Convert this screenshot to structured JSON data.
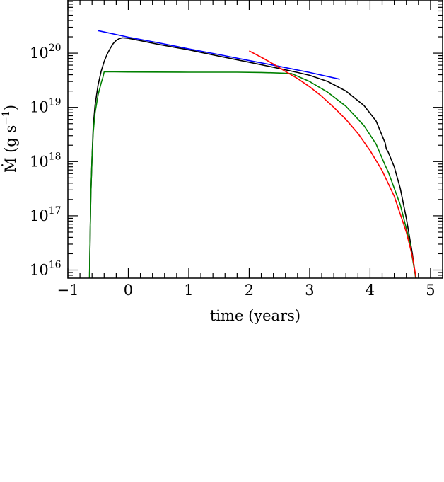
{
  "chart_data": {
    "type": "line",
    "title": "",
    "xlabel": "time (years)",
    "ylabel": "Ṁ (g s",
    "ylabel_exp": "−1",
    "ylabel_close": ")",
    "xlim": [
      -1,
      5.2
    ],
    "ylim_log10": [
      15.85,
      20.98
    ],
    "y_scale": "log",
    "grid": false,
    "legend": "none",
    "x_ticks": [
      {
        "value": -1,
        "label": "−1"
      },
      {
        "value": 0,
        "label": "0"
      },
      {
        "value": 1,
        "label": "1"
      },
      {
        "value": 2,
        "label": "2"
      },
      {
        "value": 3,
        "label": "3"
      },
      {
        "value": 4,
        "label": "4"
      },
      {
        "value": 5,
        "label": "5"
      }
    ],
    "y_ticks": [
      {
        "log10": 16,
        "base": "10",
        "exp": "16"
      },
      {
        "log10": 17,
        "base": "10",
        "exp": "17"
      },
      {
        "log10": 18,
        "base": "10",
        "exp": "18"
      },
      {
        "log10": 19,
        "base": "10",
        "exp": "19"
      },
      {
        "log10": 20,
        "base": "10",
        "exp": "20"
      }
    ],
    "series": [
      {
        "color": "#000000",
        "x": [
          -0.65,
          -0.64,
          -0.63,
          -0.62,
          -0.6,
          -0.58,
          -0.55,
          -0.5,
          -0.45,
          -0.4,
          -0.35,
          -0.3,
          -0.25,
          -0.2,
          -0.15,
          -0.1,
          0.0,
          0.2,
          0.5,
          1.0,
          1.5,
          2.0,
          2.5,
          2.8,
          3.0,
          3.3,
          3.6,
          3.9,
          4.1,
          4.25,
          4.27,
          4.3,
          4.4,
          4.5,
          4.6,
          4.7,
          4.75,
          4.78,
          4.8
        ],
        "y": [
          1000000000000000.0,
          1e+16,
          6e+16,
          2.5e+17,
          1.2e+18,
          4.5e+18,
          1.1e+19,
          2.6e+19,
          4.6e+19,
          7e+19,
          9.6e+19,
          1.22e+20,
          1.5e+20,
          1.72e+20,
          1.85e+20,
          1.92e+20,
          1.88e+20,
          1.7e+20,
          1.45e+20,
          1.15e+20,
          8.8e+19,
          6.8e+19,
          5.2e+19,
          4.4e+19,
          3.9e+19,
          3e+19,
          2e+19,
          1.08e+19,
          5.6e+18,
          2.2e+18,
          1.7e+18,
          1.5e+18,
          8e+17,
          3.2e+17,
          9e+16,
          2e+16,
          8000000000000000.0,
          3000000000000000.0,
          1000000000000000.0
        ]
      },
      {
        "color": "#008000",
        "x": [
          -0.65,
          -0.64,
          -0.63,
          -0.62,
          -0.6,
          -0.58,
          -0.55,
          -0.5,
          -0.45,
          -0.42,
          -0.4,
          -0.35,
          0.0,
          1.0,
          1.8,
          2.2,
          2.5,
          2.7,
          3.0,
          3.3,
          3.6,
          3.9,
          4.1,
          4.25,
          4.3,
          4.5,
          4.65,
          4.75,
          4.8
        ],
        "y": [
          1000000000000000.0,
          1e+16,
          6e+16,
          2.5e+17,
          1.2e+18,
          3.5e+18,
          8e+18,
          1.7e+19,
          2.8e+19,
          3.6e+19,
          4.5e+19,
          4.55e+19,
          4.5e+19,
          4.45e+19,
          4.45e+19,
          4.4e+19,
          4.3e+19,
          4.2e+19,
          3e+19,
          1.9e+19,
          1.05e+19,
          4.6e+18,
          2.1e+18,
          8.5e+17,
          6.5e+17,
          1.6e+17,
          3.5e+16,
          8000000000000000.0,
          2000000000000000.0
        ]
      },
      {
        "color": "#0000ff",
        "x": [
          -0.5,
          0.0,
          0.5,
          1.0,
          1.5,
          2.0,
          2.5,
          3.0,
          3.5
        ],
        "y": [
          2.6e+20,
          1.97e+20,
          1.55e+20,
          1.2e+20,
          9.4e+19,
          7.3e+19,
          5.7e+19,
          4.4e+19,
          3.3e+19
        ]
      },
      {
        "color": "#ff0000",
        "x": [
          2.0,
          2.2,
          2.4,
          2.6,
          2.8,
          3.0,
          3.2,
          3.4,
          3.6,
          3.8,
          4.0,
          4.2,
          4.4,
          4.6,
          4.7,
          4.8
        ],
        "y": [
          1.1e+20,
          8.4e+19,
          6.3e+19,
          4.6e+19,
          3.4e+19,
          2.4e+19,
          1.6e+19,
          1e+19,
          6e+18,
          3.3e+18,
          1.6e+18,
          6.8e+17,
          2.3e+17,
          5e+16,
          1.8e+16,
          4000000000000000.0
        ]
      }
    ]
  }
}
